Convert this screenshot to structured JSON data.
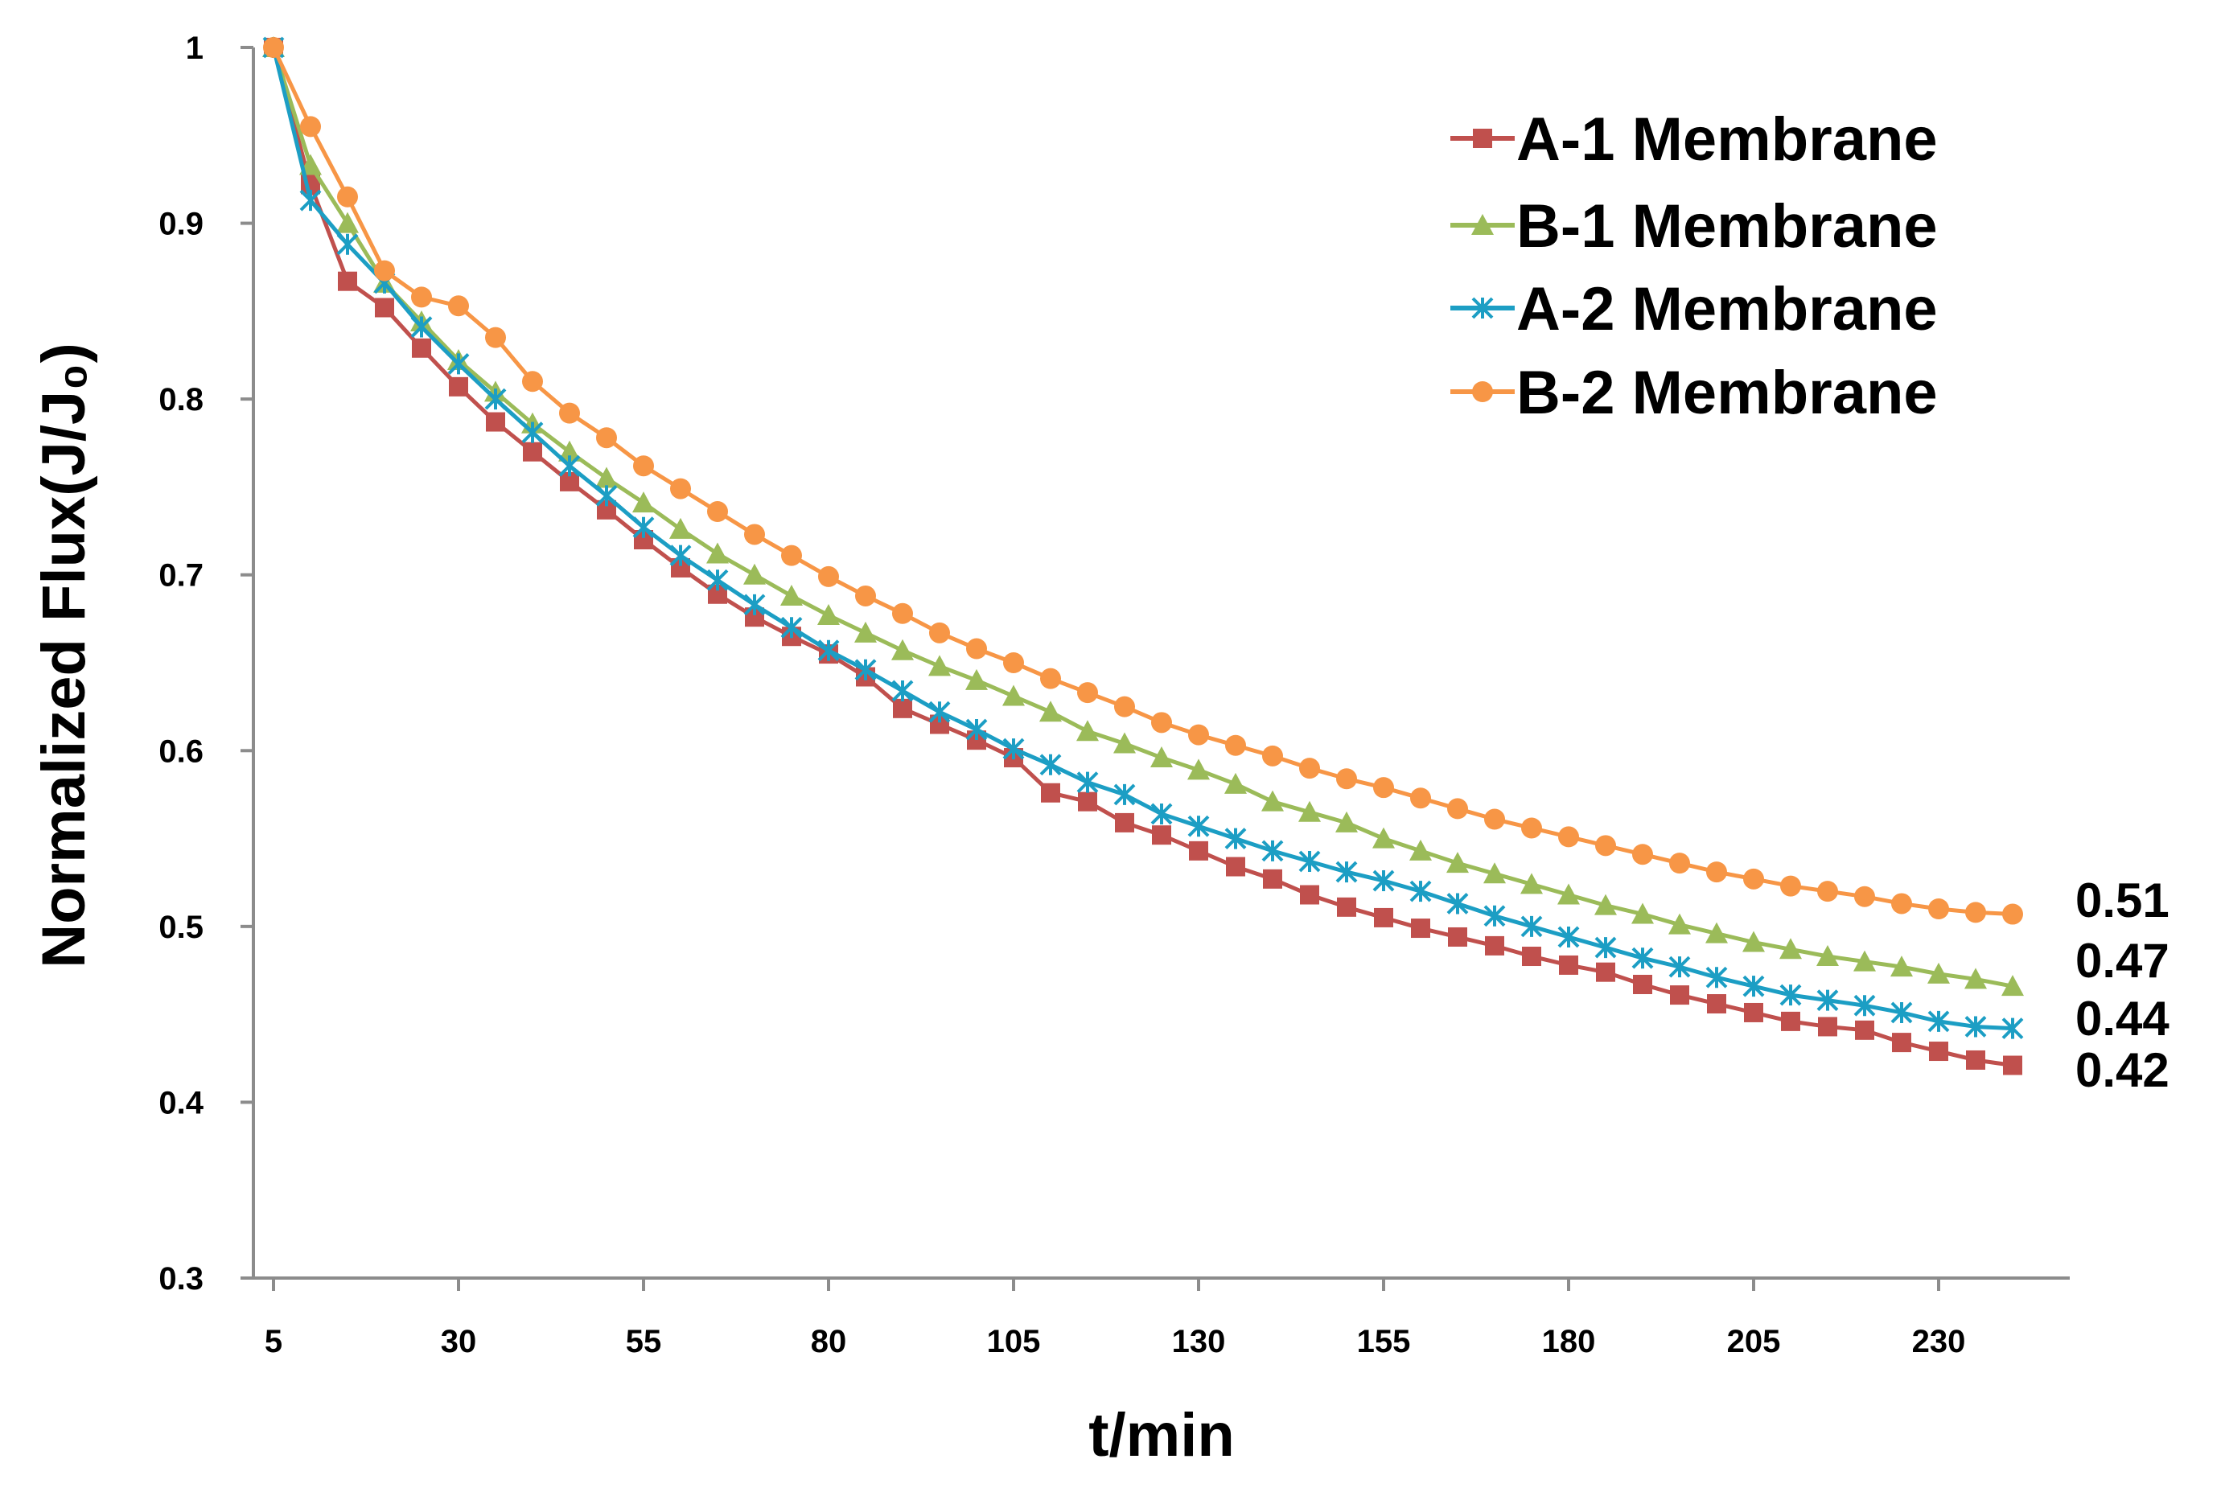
{
  "chart_data": {
    "type": "line",
    "title": "",
    "xlabel": "t/min",
    "ylabel": "Normalized Flux(J/J₀)",
    "xlim": [
      5,
      245
    ],
    "ylim": [
      0.3,
      1.0
    ],
    "xticks": [
      5,
      30,
      55,
      80,
      105,
      130,
      155,
      180,
      205,
      230
    ],
    "yticks": [
      0.3,
      0.4,
      0.5,
      0.6,
      0.7,
      0.8,
      0.9,
      1.0
    ],
    "ytick_labels": [
      "0.3",
      "0.4",
      "0.5",
      "0.6",
      "0.7",
      "0.8",
      "0.9",
      "1"
    ],
    "grid": false,
    "legend_position": "top-right",
    "x": [
      5,
      10,
      15,
      20,
      25,
      30,
      35,
      40,
      45,
      50,
      55,
      60,
      65,
      70,
      75,
      80,
      85,
      90,
      95,
      100,
      105,
      110,
      115,
      120,
      125,
      130,
      135,
      140,
      145,
      150,
      155,
      160,
      165,
      170,
      175,
      180,
      185,
      190,
      195,
      200,
      205,
      210,
      215,
      220,
      225,
      230,
      235,
      240
    ],
    "series": [
      {
        "name": "A-1 Membrane",
        "color": "#c0504d",
        "marker": "square",
        "end_label": "0.42",
        "values": [
          1.0,
          0.922,
          0.867,
          0.852,
          0.829,
          0.807,
          0.787,
          0.77,
          0.753,
          0.737,
          0.72,
          0.704,
          0.689,
          0.676,
          0.665,
          0.655,
          0.642,
          0.624,
          0.615,
          0.606,
          0.596,
          0.576,
          0.571,
          0.559,
          0.552,
          0.543,
          0.534,
          0.527,
          0.518,
          0.511,
          0.505,
          0.499,
          0.494,
          0.489,
          0.483,
          0.478,
          0.474,
          0.467,
          0.461,
          0.456,
          0.451,
          0.446,
          0.443,
          0.441,
          0.434,
          0.429,
          0.424,
          0.421
        ]
      },
      {
        "name": "B-1 Membrane",
        "color": "#9bbb59",
        "marker": "triangle",
        "end_label": "0.47",
        "values": [
          1.0,
          0.933,
          0.9,
          0.866,
          0.844,
          0.822,
          0.804,
          0.786,
          0.77,
          0.755,
          0.741,
          0.726,
          0.712,
          0.7,
          0.688,
          0.677,
          0.667,
          0.657,
          0.648,
          0.64,
          0.631,
          0.622,
          0.611,
          0.604,
          0.596,
          0.589,
          0.581,
          0.571,
          0.565,
          0.559,
          0.55,
          0.543,
          0.536,
          0.53,
          0.524,
          0.518,
          0.512,
          0.507,
          0.501,
          0.496,
          0.491,
          0.487,
          0.483,
          0.48,
          0.477,
          0.473,
          0.47,
          0.466
        ]
      },
      {
        "name": "A-2 Membrane",
        "color": "#1c9ec4",
        "marker": "star",
        "end_label": "0.44",
        "values": [
          1.0,
          0.913,
          0.888,
          0.866,
          0.841,
          0.82,
          0.8,
          0.781,
          0.762,
          0.745,
          0.727,
          0.711,
          0.697,
          0.683,
          0.67,
          0.657,
          0.646,
          0.634,
          0.622,
          0.612,
          0.601,
          0.592,
          0.582,
          0.575,
          0.564,
          0.557,
          0.55,
          0.543,
          0.537,
          0.531,
          0.526,
          0.52,
          0.513,
          0.506,
          0.5,
          0.494,
          0.488,
          0.482,
          0.477,
          0.471,
          0.466,
          0.461,
          0.458,
          0.455,
          0.451,
          0.446,
          0.443,
          0.442
        ]
      },
      {
        "name": "B-2 Membrane",
        "color": "#f79646",
        "marker": "circle",
        "end_label": "0.51",
        "values": [
          1.0,
          0.955,
          0.915,
          0.873,
          0.858,
          0.853,
          0.835,
          0.81,
          0.792,
          0.778,
          0.762,
          0.749,
          0.736,
          0.723,
          0.711,
          0.699,
          0.688,
          0.678,
          0.667,
          0.658,
          0.65,
          0.641,
          0.633,
          0.625,
          0.616,
          0.609,
          0.603,
          0.597,
          0.59,
          0.584,
          0.579,
          0.573,
          0.567,
          0.561,
          0.556,
          0.551,
          0.546,
          0.541,
          0.536,
          0.531,
          0.527,
          0.523,
          0.52,
          0.517,
          0.513,
          0.51,
          0.508,
          0.507
        ]
      }
    ]
  }
}
